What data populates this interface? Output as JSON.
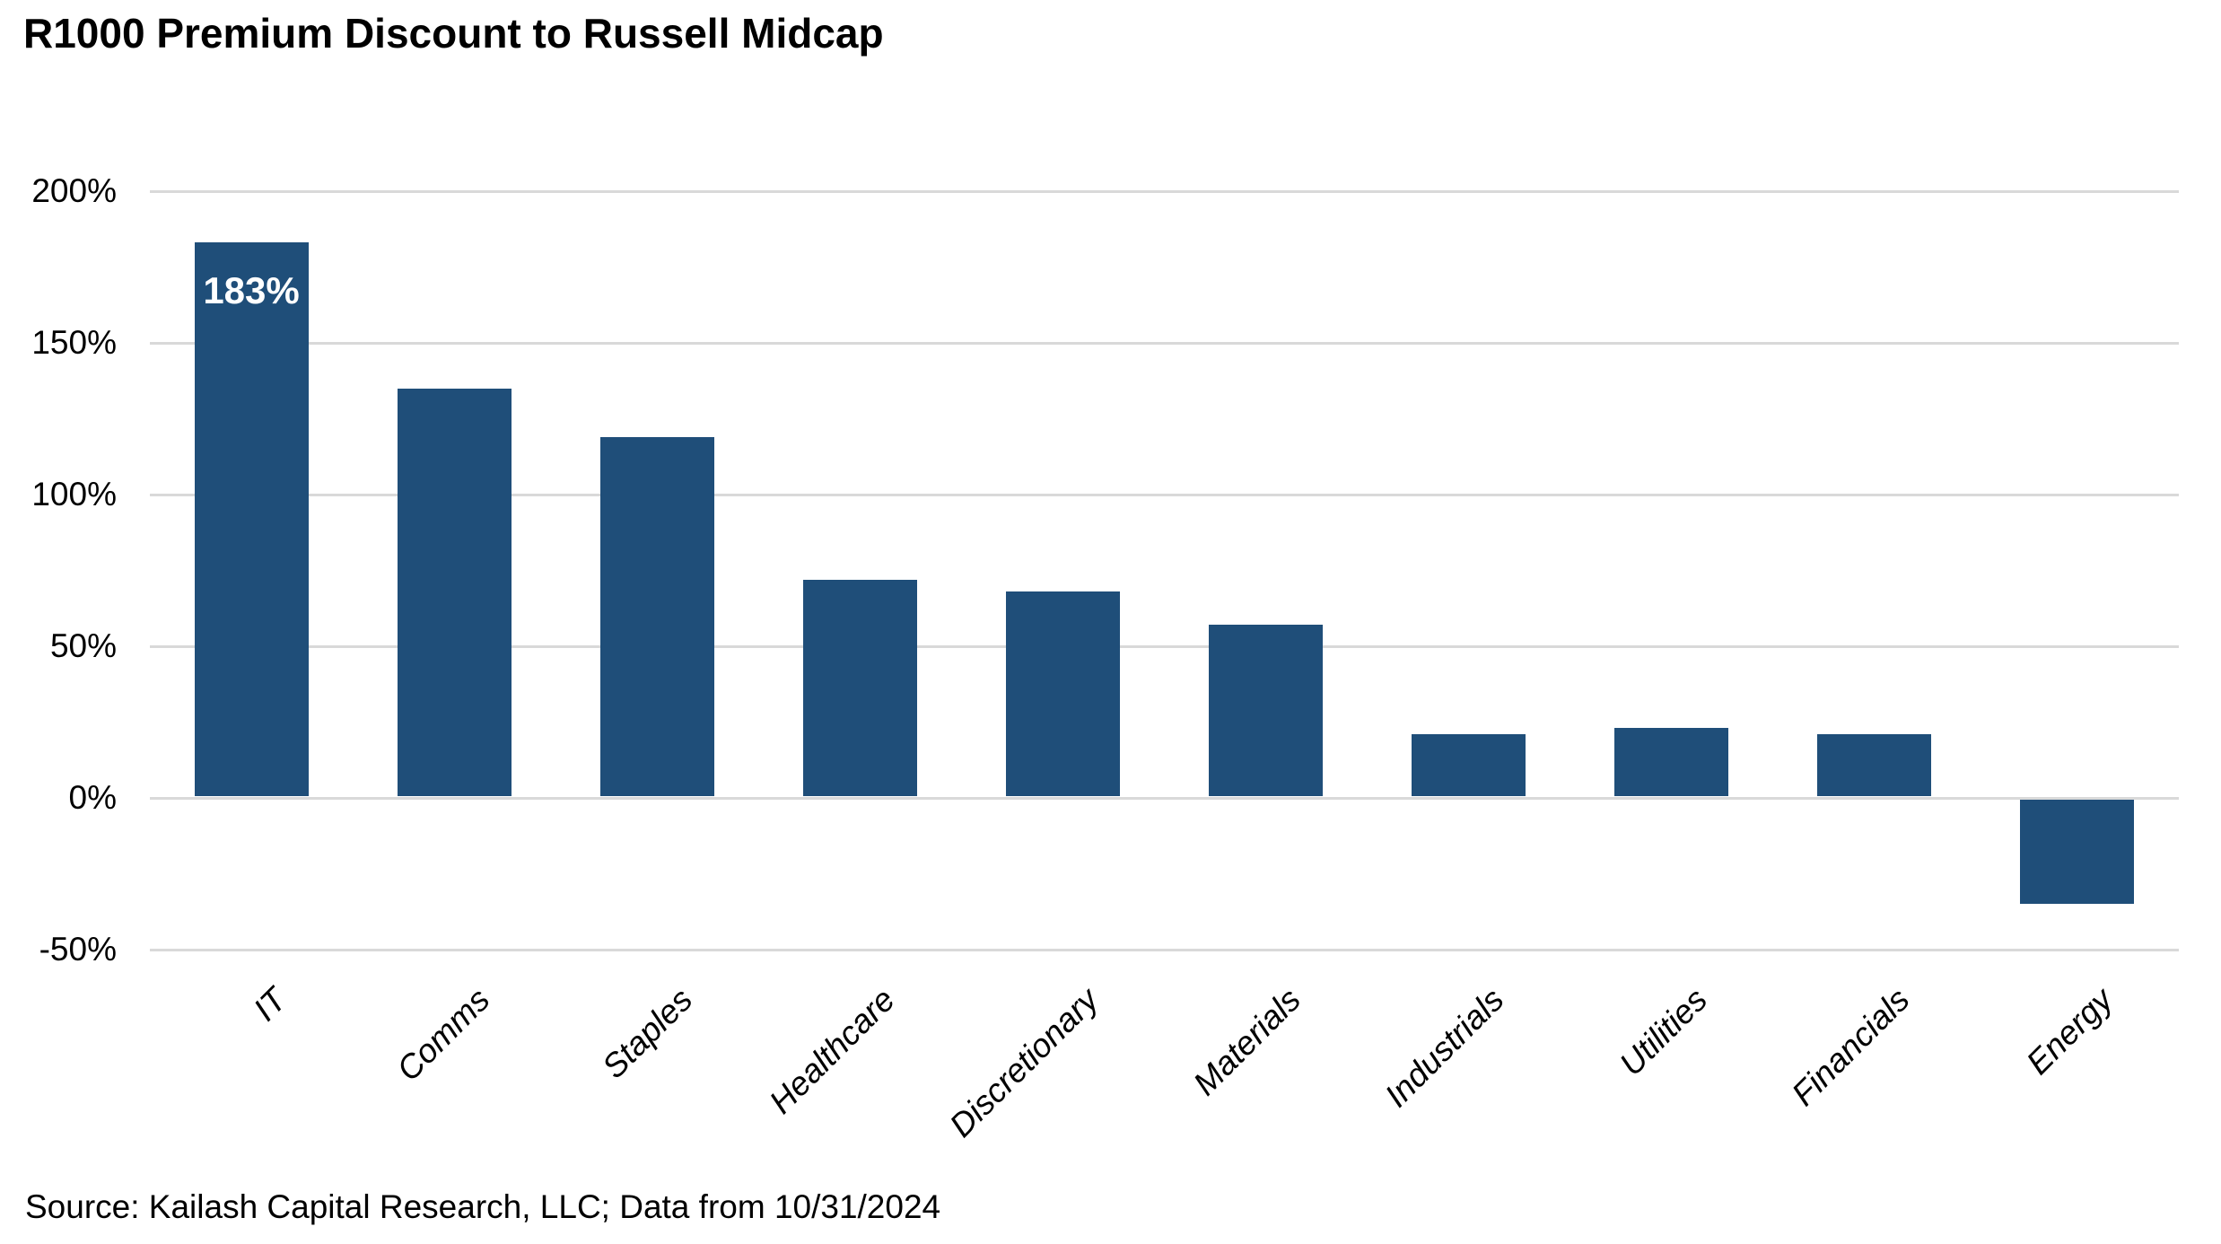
{
  "chart_data": {
    "type": "bar",
    "title": "R1000 Premium Discount to Russell Midcap",
    "categories": [
      "IT",
      "Comms",
      "Staples",
      "Healthcare",
      "Discretionary",
      "Materials",
      "Industrials",
      "Utilities",
      "Financials",
      "Energy"
    ],
    "values": [
      183,
      135,
      119,
      72,
      68,
      57,
      21,
      23,
      21,
      -35
    ],
    "unit": "%",
    "xlabel": "",
    "ylabel": "",
    "ylim": [
      -50,
      200
    ],
    "ytick_values": [
      200,
      150,
      100,
      50,
      0,
      -50
    ],
    "ytick_labels": [
      "200%",
      "150%",
      "100%",
      "50%",
      "0%",
      "-50%"
    ],
    "grid": "horizontal",
    "legend": "none",
    "data_labels": [
      {
        "category": "IT",
        "text": "183%"
      }
    ],
    "colors": {
      "bar": "#1F4E79",
      "gridline": "#D9D9D9",
      "data_label_text": "#FFFFFF",
      "axis_text": "#000000"
    }
  },
  "source_note": "Source: Kailash Capital Research, LLC; Data from 10/31/2024"
}
